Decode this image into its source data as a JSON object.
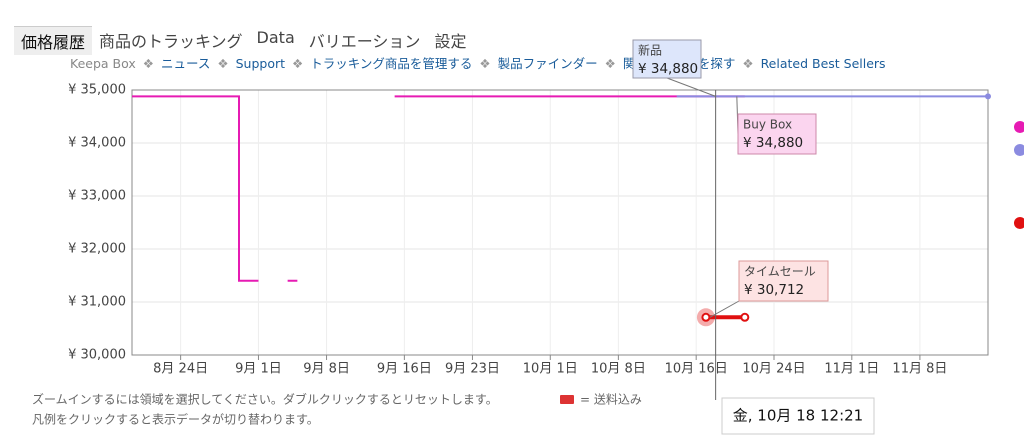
{
  "tabs": [
    "価格履歴",
    "商品のトラッキング",
    "Data",
    "バリエーション",
    "設定"
  ],
  "nav": [
    "Keepa Box",
    "ニュース",
    "Support",
    "トラッキング商品を管理する",
    "製品ファインダー",
    "関連する商品を探す",
    "Related Best Sellers"
  ],
  "chart_data": {
    "type": "line",
    "xlim": [
      "08-19",
      "11-15"
    ],
    "xticks": [
      {
        "value": "08-24",
        "label": "8月 24日"
      },
      {
        "value": "09-01",
        "label": "9月 1日"
      },
      {
        "value": "09-08",
        "label": "9月 8日"
      },
      {
        "value": "09-16",
        "label": "9月 16日"
      },
      {
        "value": "09-23",
        "label": "9月 23日"
      },
      {
        "value": "10-01",
        "label": "10月 1日"
      },
      {
        "value": "10-08",
        "label": "10月 8日"
      },
      {
        "value": "10-16",
        "label": "10月 16日"
      },
      {
        "value": "10-24",
        "label": "10月 24日"
      },
      {
        "value": "11-01",
        "label": "11月 1日"
      },
      {
        "value": "11-08",
        "label": "11月 8日"
      }
    ],
    "ylim": [
      30000,
      35000
    ],
    "yticks": [
      {
        "value": 30000,
        "label": "¥ 30,000"
      },
      {
        "value": 31000,
        "label": "¥ 31,000"
      },
      {
        "value": 32000,
        "label": "¥ 32,000"
      },
      {
        "value": 33000,
        "label": "¥ 33,000"
      },
      {
        "value": 34000,
        "label": "¥ 34,000"
      },
      {
        "value": 35000,
        "label": "¥ 35,000"
      }
    ],
    "grid": true,
    "series": [
      {
        "color": "#e61bb3",
        "x": [
          "08-19",
          "08-30",
          "08-30",
          "09-01",
          "09-02",
          "09-04",
          "09-05",
          "09-06",
          "09-15",
          "10-21"
        ],
        "values": [
          34880,
          34880,
          31400,
          31400,
          null,
          31400,
          31400,
          null,
          34880,
          34880
        ]
      },
      {
        "color": "#8b8be0",
        "x": [
          "10-14",
          "11-15"
        ],
        "values": [
          34880,
          34880
        ]
      },
      {
        "color": "#e01010",
        "x": [
          "10-17",
          "10-21"
        ],
        "values": [
          30712,
          30712
        ]
      }
    ],
    "cursor": "10-18"
  },
  "tooltips": {
    "new": {
      "title": "新品",
      "price": "¥ 34,880"
    },
    "buybox": {
      "title": "Buy Box",
      "price": "¥ 34,880"
    },
    "deal": {
      "title": "タイムセール",
      "price": "¥ 30,712"
    },
    "time": "金, 10月 18 12:21"
  },
  "footer": {
    "zoom": "ズームインするには領域を選択してください。ダブルクリックするとリセットします。",
    "shipping": "= 送料込み",
    "legend": "凡例をクリックすると表示データが切り替わります。"
  }
}
